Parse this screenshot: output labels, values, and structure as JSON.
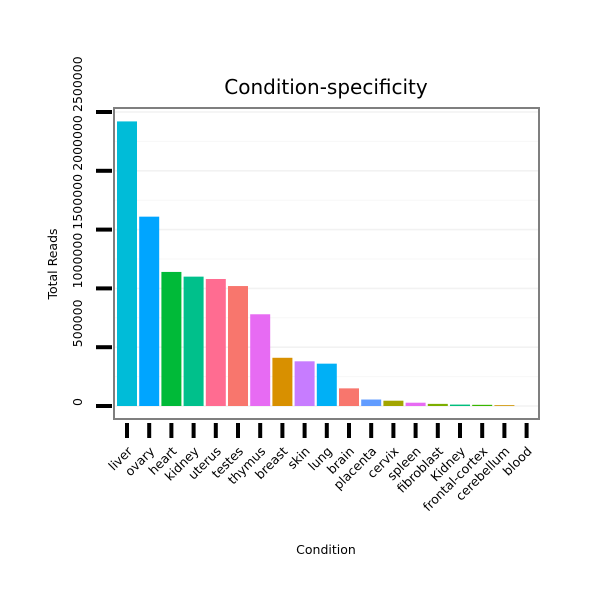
{
  "chart_data": {
    "type": "bar",
    "title": "Condition-specificity",
    "xlabel": "Condition",
    "ylabel": "Total Reads",
    "ylim": [
      0,
      2500000
    ],
    "ytick_values": [
      0,
      500000,
      1000000,
      1500000,
      2000000,
      2500000
    ],
    "ytick_labels": [
      "0",
      "500000",
      "1000000",
      "1500000",
      "2000000",
      "2500000"
    ],
    "categories": [
      "liver",
      "ovary",
      "heart",
      "kidney",
      "uterus",
      "testes",
      "thymus",
      "breast",
      "skin",
      "lung",
      "brain",
      "placenta",
      "cervix",
      "spleen",
      "fibroblast",
      "Kidney",
      "frontal-cortex",
      "cerebellum",
      "blood"
    ],
    "values": [
      2420000,
      1610000,
      1140000,
      1100000,
      1080000,
      1020000,
      780000,
      410000,
      380000,
      360000,
      150000,
      55000,
      45000,
      28000,
      18000,
      12000,
      10000,
      7000,
      0
    ],
    "colors": [
      "#00BCD8",
      "#00A5FF",
      "#00BA38",
      "#00C08B",
      "#FF6C91",
      "#F8766D",
      "#E76BF3",
      "#D89000",
      "#C77CFF",
      "#00B0F6",
      "#F8766D",
      "#619CFF",
      "#A3A500",
      "#E76BF3",
      "#7CAE00",
      "#00BF7D",
      "#39B600",
      "#CF9400",
      "#FF62BC"
    ],
    "grid": true,
    "legend": "none"
  }
}
